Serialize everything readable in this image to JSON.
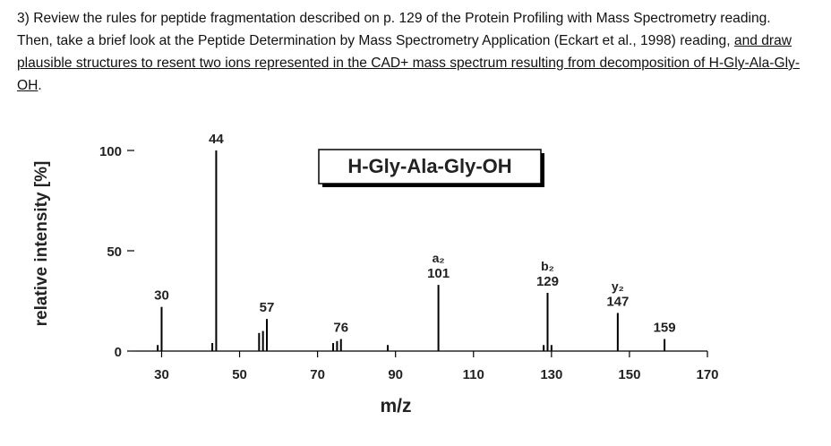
{
  "question": {
    "text": "3) Review the rules for peptide fragmentation described on p. 129 of the Protein Profiling with Mass Spectrometry reading. Then, take a brief look at the Peptide Determination by Mass Spectrometry Application (Eckart et al., 1998) reading,",
    "underlined": "and draw plausible structures to resent two ions represented in the CAD+ mass spectrum resulting from decomposition of H-Gly-Ala-Gly-OH",
    "end": "."
  },
  "chart_data": {
    "type": "stem",
    "title": "H-Gly-Ala-Gly-OH",
    "x_label": "m/z",
    "y_label": "relative intensity [%]",
    "x": [
      29,
      30,
      43,
      44,
      55,
      56,
      57,
      74,
      75,
      76,
      88,
      101,
      128,
      129,
      130,
      147,
      159
    ],
    "values": [
      3,
      22,
      4,
      100,
      9,
      10,
      16,
      4,
      5,
      6,
      3,
      33,
      3,
      29,
      3,
      19,
      6
    ],
    "peak_labels": [
      null,
      "30",
      null,
      "44",
      null,
      null,
      "57",
      null,
      null,
      "76",
      null,
      "101",
      null,
      "129",
      null,
      "147",
      "159"
    ],
    "ion_labels": [
      null,
      null,
      null,
      null,
      null,
      null,
      null,
      null,
      null,
      null,
      null,
      "a₂",
      null,
      "b₂",
      null,
      "y₂",
      null
    ],
    "color": "#000000",
    "xlim": [
      23,
      170
    ],
    "ylim": [
      0,
      100
    ],
    "xticks": [
      30,
      50,
      70,
      90,
      110,
      130,
      150,
      170
    ],
    "yticks": [
      0,
      50,
      100
    ]
  }
}
